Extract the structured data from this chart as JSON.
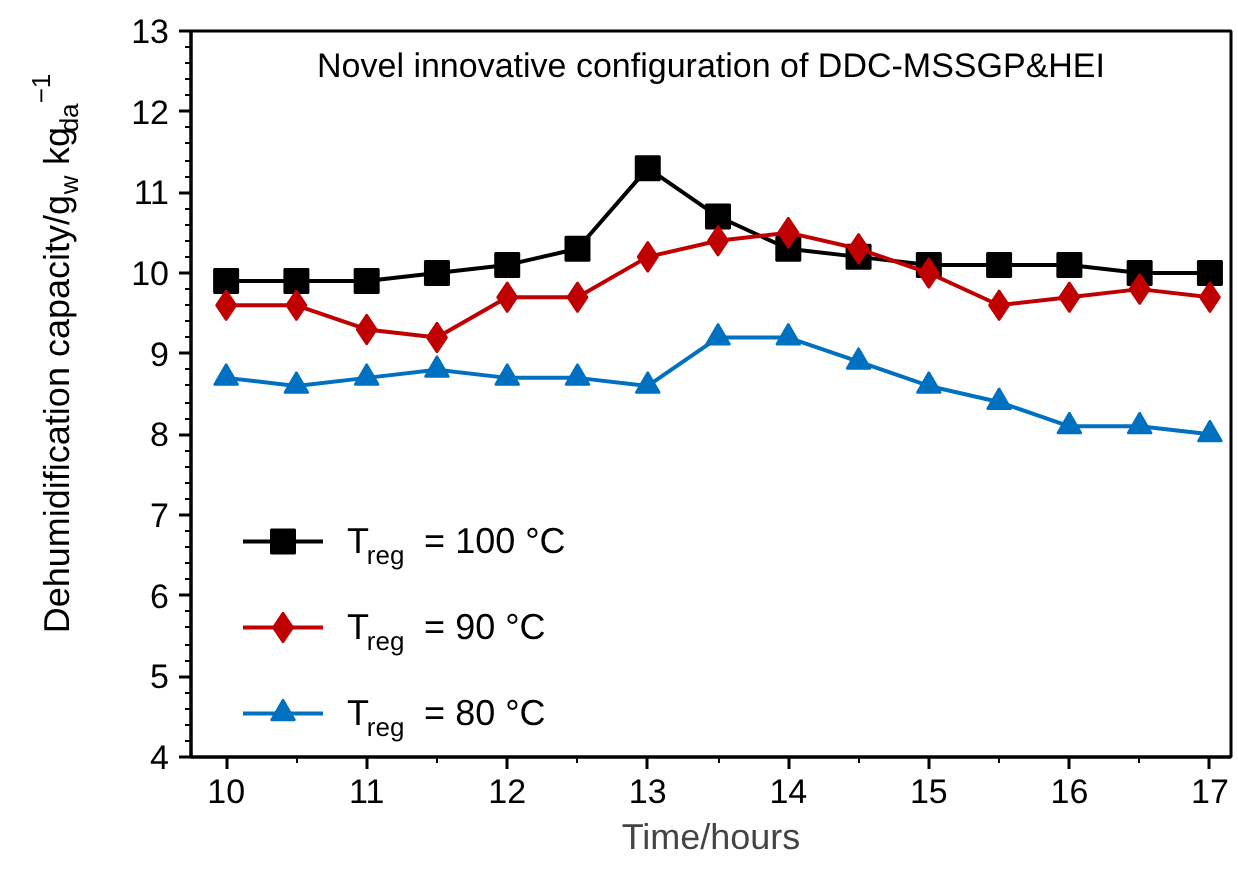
{
  "chart_data": {
    "type": "line",
    "title": "Novel innovative configuration of DDC-MSSGP&HEI",
    "xlabel": "Time/hours",
    "ylabel": "Dehumidification capacity/g$_{w}$ kg$_{da}$$^{−1}$",
    "x": [
      10,
      10.5,
      11,
      11.5,
      12,
      12.5,
      13,
      13.5,
      14,
      14.5,
      15,
      15.5,
      16,
      16.5,
      17
    ],
    "series": [
      {
        "name": "T$_{reg}$ = 100 °C",
        "color": "#000000",
        "marker": "square",
        "values": [
          9.9,
          9.9,
          9.9,
          10.0,
          10.1,
          10.3,
          11.3,
          10.7,
          10.3,
          10.2,
          10.1,
          10.1,
          10.1,
          10.0,
          10.0
        ]
      },
      {
        "name": "T$_{reg}$ = 90 °C",
        "color": "#c00000",
        "marker": "diamond",
        "values": [
          9.6,
          9.6,
          9.3,
          9.2,
          9.7,
          9.7,
          10.2,
          10.4,
          10.5,
          10.3,
          10.0,
          9.6,
          9.7,
          9.8,
          9.7
        ]
      },
      {
        "name": "T$_{reg}$ = 80 °C",
        "color": "#0070c0",
        "marker": "triangle",
        "values": [
          8.7,
          8.6,
          8.7,
          8.8,
          8.7,
          8.7,
          8.6,
          9.2,
          9.2,
          8.9,
          8.6,
          8.4,
          8.1,
          8.1,
          8.0
        ]
      }
    ],
    "xlim": [
      9.75,
      17.15
    ],
    "ylim": [
      4,
      13
    ],
    "xticks": [
      10,
      11,
      12,
      13,
      14,
      15,
      16,
      17
    ],
    "yticks": [
      4,
      5,
      6,
      7,
      8,
      9,
      10,
      11,
      12,
      13
    ],
    "grid": false,
    "legend": "bottom left",
    "line_style": "solid"
  }
}
